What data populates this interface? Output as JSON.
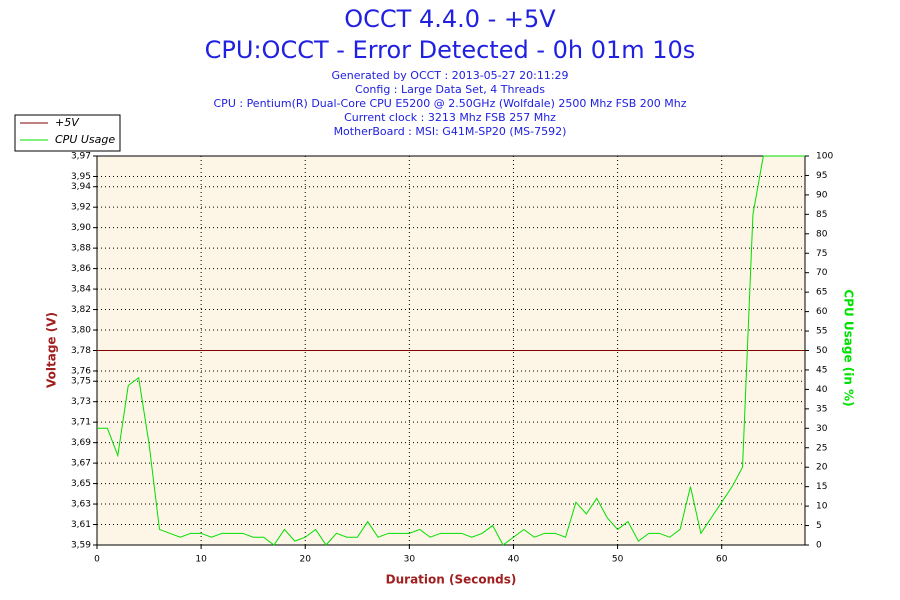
{
  "chart_data": {
    "type": "line",
    "title": "OCCT 4.4.0 - +5V",
    "subtitle": "CPU:OCCT - Error Detected - 0h 01m 10s",
    "info": [
      "Generated by OCCT : 2013-05-27 20:11:29",
      "Config : Large Data Set, 4 Threads",
      "CPU : Pentium(R) Dual-Core CPU E5200 @ 2.50GHz (Wolfdale) 2500 Mhz FSB 200 Mhz",
      "Current clock : 3213 Mhz FSB 257 Mhz",
      "MotherBoard : MSI: G41M-SP20 (MS-7592)"
    ],
    "x_label": "Duration (Seconds)",
    "y_label": "Voltage (V)",
    "y2_label": "CPU Usage (in %)",
    "grid": true,
    "legend": "top-left",
    "xlim": [
      0,
      68
    ],
    "xticks": [
      0,
      10,
      20,
      30,
      40,
      50,
      60
    ],
    "ylim": [
      3.59,
      3.97
    ],
    "yticks": [
      {
        "value": 3.59,
        "label": "3,59"
      },
      {
        "value": 3.61,
        "label": "3,61"
      },
      {
        "value": 3.63,
        "label": "3,63"
      },
      {
        "value": 3.65,
        "label": "3,65"
      },
      {
        "value": 3.67,
        "label": "3,67"
      },
      {
        "value": 3.69,
        "label": "3,69"
      },
      {
        "value": 3.71,
        "label": "3,71"
      },
      {
        "value": 3.73,
        "label": "3,73"
      },
      {
        "value": 3.75,
        "label": "3,75"
      },
      {
        "value": 3.76,
        "label": "3,76"
      },
      {
        "value": 3.78,
        "label": "3,78"
      },
      {
        "value": 3.8,
        "label": "3,80"
      },
      {
        "value": 3.82,
        "label": "3,82"
      },
      {
        "value": 3.84,
        "label": "3,84"
      },
      {
        "value": 3.86,
        "label": "3,86"
      },
      {
        "value": 3.88,
        "label": "3,88"
      },
      {
        "value": 3.9,
        "label": "3,90"
      },
      {
        "value": 3.92,
        "label": "3,92"
      },
      {
        "value": 3.94,
        "label": "3,94"
      },
      {
        "value": 3.95,
        "label": "3,95"
      },
      {
        "value": 3.97,
        "label": "3,97"
      }
    ],
    "y2lim": [
      0,
      100
    ],
    "y2ticks": [
      0,
      5,
      10,
      15,
      20,
      25,
      30,
      35,
      40,
      45,
      50,
      55,
      60,
      65,
      70,
      75,
      80,
      85,
      90,
      95,
      100
    ],
    "x": [
      0,
      1,
      2,
      3,
      4,
      5,
      6,
      7,
      8,
      9,
      10,
      11,
      12,
      13,
      14,
      15,
      16,
      17,
      18,
      19,
      20,
      21,
      22,
      23,
      24,
      25,
      26,
      27,
      28,
      29,
      30,
      31,
      32,
      33,
      34,
      35,
      36,
      37,
      38,
      39,
      40,
      41,
      42,
      43,
      44,
      45,
      46,
      47,
      48,
      49,
      50,
      51,
      52,
      53,
      54,
      55,
      56,
      57,
      58,
      59,
      60,
      61,
      62,
      63,
      64,
      65,
      66,
      67,
      68
    ],
    "series": [
      {
        "name": "+5V",
        "color": "#800000",
        "values": [
          3.78,
          3.78,
          3.78,
          3.78,
          3.78,
          3.78,
          3.78,
          3.78,
          3.78,
          3.78,
          3.78,
          3.78,
          3.78,
          3.78,
          3.78,
          3.78,
          3.78,
          3.78,
          3.78,
          3.78,
          3.78,
          3.78,
          3.78,
          3.78,
          3.78,
          3.78,
          3.78,
          3.78,
          3.78,
          3.78,
          3.78,
          3.78,
          3.78,
          3.78,
          3.78,
          3.78,
          3.78,
          3.78,
          3.78,
          3.78,
          3.78,
          3.78,
          3.78,
          3.78,
          3.78,
          3.78,
          3.78,
          3.78,
          3.78,
          3.78,
          3.78,
          3.78,
          3.78,
          3.78,
          3.78,
          3.78,
          3.78,
          3.78,
          3.78,
          3.78,
          3.78,
          3.78,
          3.78,
          3.78,
          3.78,
          3.78,
          3.78,
          3.78,
          3.78
        ]
      },
      {
        "name": "CPU Usage",
        "color": "#00e000",
        "axis": "y2",
        "values": [
          30,
          30,
          23,
          41,
          43,
          26,
          4,
          3,
          2,
          3,
          3,
          2,
          3,
          3,
          3,
          2,
          2,
          0,
          4,
          1,
          2,
          4,
          0,
          3,
          2,
          2,
          6,
          2,
          3,
          3,
          3,
          4,
          2,
          3,
          3,
          3,
          2,
          3,
          5,
          0,
          2,
          4,
          2,
          3,
          3,
          2,
          11,
          8,
          12,
          7,
          4,
          6,
          1,
          3,
          3,
          2,
          4,
          15,
          3,
          7,
          11,
          15,
          20,
          85,
          100,
          100,
          100,
          100,
          100
        ]
      }
    ]
  }
}
